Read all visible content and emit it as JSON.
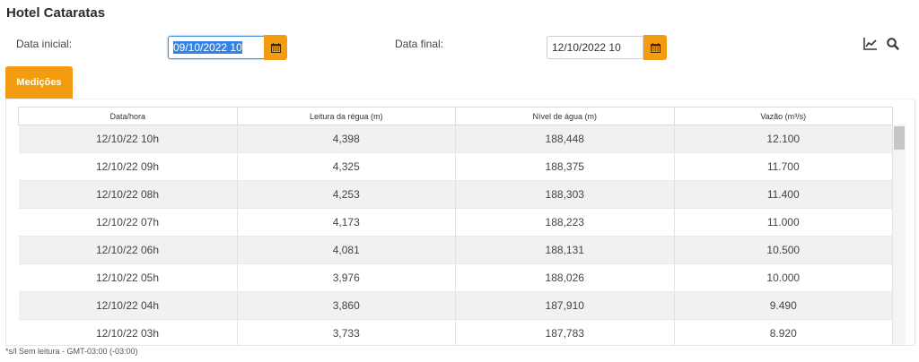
{
  "header": {
    "title": "Hotel Cataratas"
  },
  "filters": {
    "start_label": "Data inicial:",
    "start_value": "09/10/2022 10",
    "end_label": "Data final:",
    "end_value": "12/10/2022 10",
    "accent_color": "#f39c12"
  },
  "toolbar": {
    "chart_icon": "line-chart-icon",
    "search_icon": "search-icon"
  },
  "tabs": [
    {
      "label": "Medições"
    }
  ],
  "table": {
    "columns": [
      "Data/hora",
      "Leitura da régua (m)",
      "Nível de água (m)",
      "Vazão (m³/s)"
    ],
    "rows": [
      [
        "12/10/22 10h",
        "4,398",
        "188,448",
        "12.100"
      ],
      [
        "12/10/22 09h",
        "4,325",
        "188,375",
        "11.700"
      ],
      [
        "12/10/22 08h",
        "4,253",
        "188,303",
        "11.400"
      ],
      [
        "12/10/22 07h",
        "4,173",
        "188,223",
        "11.000"
      ],
      [
        "12/10/22 06h",
        "4,081",
        "188,131",
        "10.500"
      ],
      [
        "12/10/22 05h",
        "3,976",
        "188,026",
        "10.000"
      ],
      [
        "12/10/22 04h",
        "3,860",
        "187,910",
        "9.490"
      ],
      [
        "12/10/22 03h",
        "3,733",
        "187,783",
        "8.920"
      ]
    ]
  },
  "footer": {
    "note": "*s/l Sem leitura - GMT-03:00 (-03:00)"
  }
}
